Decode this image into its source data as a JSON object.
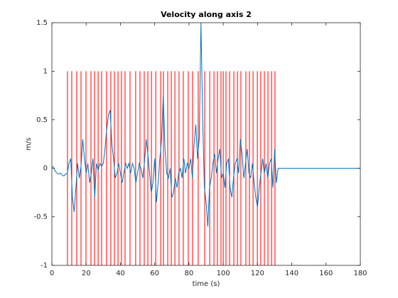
{
  "chart_data": {
    "type": "line",
    "title": "Velocity along axis 2",
    "xlabel": "time (s)",
    "ylabel": "m/s",
    "xlim": [
      0,
      180
    ],
    "ylim": [
      -1,
      1.5
    ],
    "xticks": [
      0,
      20,
      40,
      60,
      80,
      100,
      120,
      140,
      160,
      180
    ],
    "yticks": [
      -1,
      -0.5,
      0,
      0.5,
      1,
      1.5
    ],
    "series": [
      {
        "color": "#0072bd",
        "x": [
          0,
          1,
          2,
          3,
          4,
          5,
          6,
          7,
          8,
          9,
          10,
          11,
          12,
          13,
          14,
          15,
          16,
          17,
          18,
          19,
          20,
          21,
          22,
          23,
          24,
          25,
          26,
          27,
          28,
          29,
          30,
          31,
          32,
          33,
          34,
          35,
          36,
          37,
          38,
          39,
          40,
          41,
          42,
          43,
          44,
          45,
          46,
          47,
          48,
          49,
          50,
          51,
          52,
          53,
          54,
          55,
          56,
          57,
          58,
          59,
          60,
          61,
          62,
          63,
          64,
          65,
          66,
          67,
          68,
          69,
          70,
          71,
          72,
          73,
          74,
          75,
          76,
          77,
          78,
          79,
          80,
          81,
          82,
          83,
          84,
          85,
          86,
          87,
          88,
          89,
          90,
          91,
          92,
          93,
          94,
          95,
          96,
          97,
          98,
          99,
          100,
          101,
          102,
          103,
          104,
          105,
          106,
          107,
          108,
          109,
          110,
          111,
          112,
          113,
          114,
          115,
          116,
          117,
          118,
          119,
          120,
          121,
          122,
          123,
          124,
          125,
          126,
          127,
          128,
          129,
          130,
          131,
          132,
          180
        ],
        "values": [
          0.02,
          0.01,
          -0.03,
          -0.05,
          -0.06,
          -0.05,
          -0.07,
          -0.08,
          -0.06,
          -0.05,
          0.05,
          0.1,
          -0.3,
          -0.45,
          -0.2,
          0.05,
          -0.1,
          0.02,
          0.3,
          0.1,
          -0.05,
          0.05,
          -0.15,
          -0.05,
          0.1,
          -0.3,
          0.05,
          -0.02,
          0.05,
          0.02,
          0.05,
          0.2,
          0.4,
          0.55,
          0.6,
          0.25,
          0.1,
          -0.1,
          -0.05,
          0.05,
          -0.05,
          -0.15,
          -0.05,
          0.05,
          0,
          0.05,
          -0.05,
          0.05,
          0,
          -0.15,
          -0.05,
          0.05,
          0,
          -0.1,
          0.05,
          0.3,
          0.15,
          -0.05,
          -0.25,
          -0.15,
          0.1,
          -0.35,
          -0.15,
          0.1,
          0.3,
          0.75,
          0.2,
          -0.05,
          -0.1,
          0,
          -0.3,
          -0.25,
          -0.1,
          -0.2,
          -0.05,
          0,
          -0.1,
          0.1,
          -0.05,
          0.05,
          0,
          0.1,
          -0.1,
          0.25,
          0.45,
          0.1,
          0.3,
          1.5,
          0.5,
          -0.2,
          -0.35,
          -0.6,
          -0.2,
          -0.1,
          0.05,
          0.15,
          -0.05,
          0.1,
          0.2,
          -0.1,
          -0.05,
          -0.2,
          0.05,
          0.1,
          -0.2,
          -0.3,
          -0.1,
          0.05,
          0.1,
          -0.05,
          0.3,
          0.15,
          -0.1,
          0.05,
          0.2,
          -0.05,
          -0.1,
          0.05,
          -0.15,
          -0.3,
          -0.4,
          -0.2,
          -0.05,
          0.1,
          -0.05,
          0.05,
          -0.1,
          0.05,
          0.1,
          -0.2,
          0.2,
          -0.15,
          0,
          0
        ]
      }
    ],
    "vlines": {
      "color": "#ff0000",
      "range": [
        -1,
        1
      ],
      "x": [
        9.1,
        11.6,
        14.5,
        17.0,
        19.9,
        22.8,
        24.9,
        27.0,
        29.0,
        31.9,
        34.4,
        36.5,
        38.6,
        40.6,
        42.7,
        45.6,
        48.9,
        51.4,
        53.9,
        56.0,
        58.1,
        60.6,
        63.5,
        65.1,
        67.6,
        69.7,
        71.8,
        74.2,
        76.7,
        79.6,
        82.1,
        85.4,
        89.2,
        92.1,
        94.6,
        96.6,
        98.7,
        100.0,
        101.6,
        103.7,
        106.2,
        108.3,
        110.3,
        113.2,
        115.3,
        117.4,
        119.9,
        121.9,
        124.0,
        126.1,
        128.2,
        130.2
      ]
    }
  }
}
